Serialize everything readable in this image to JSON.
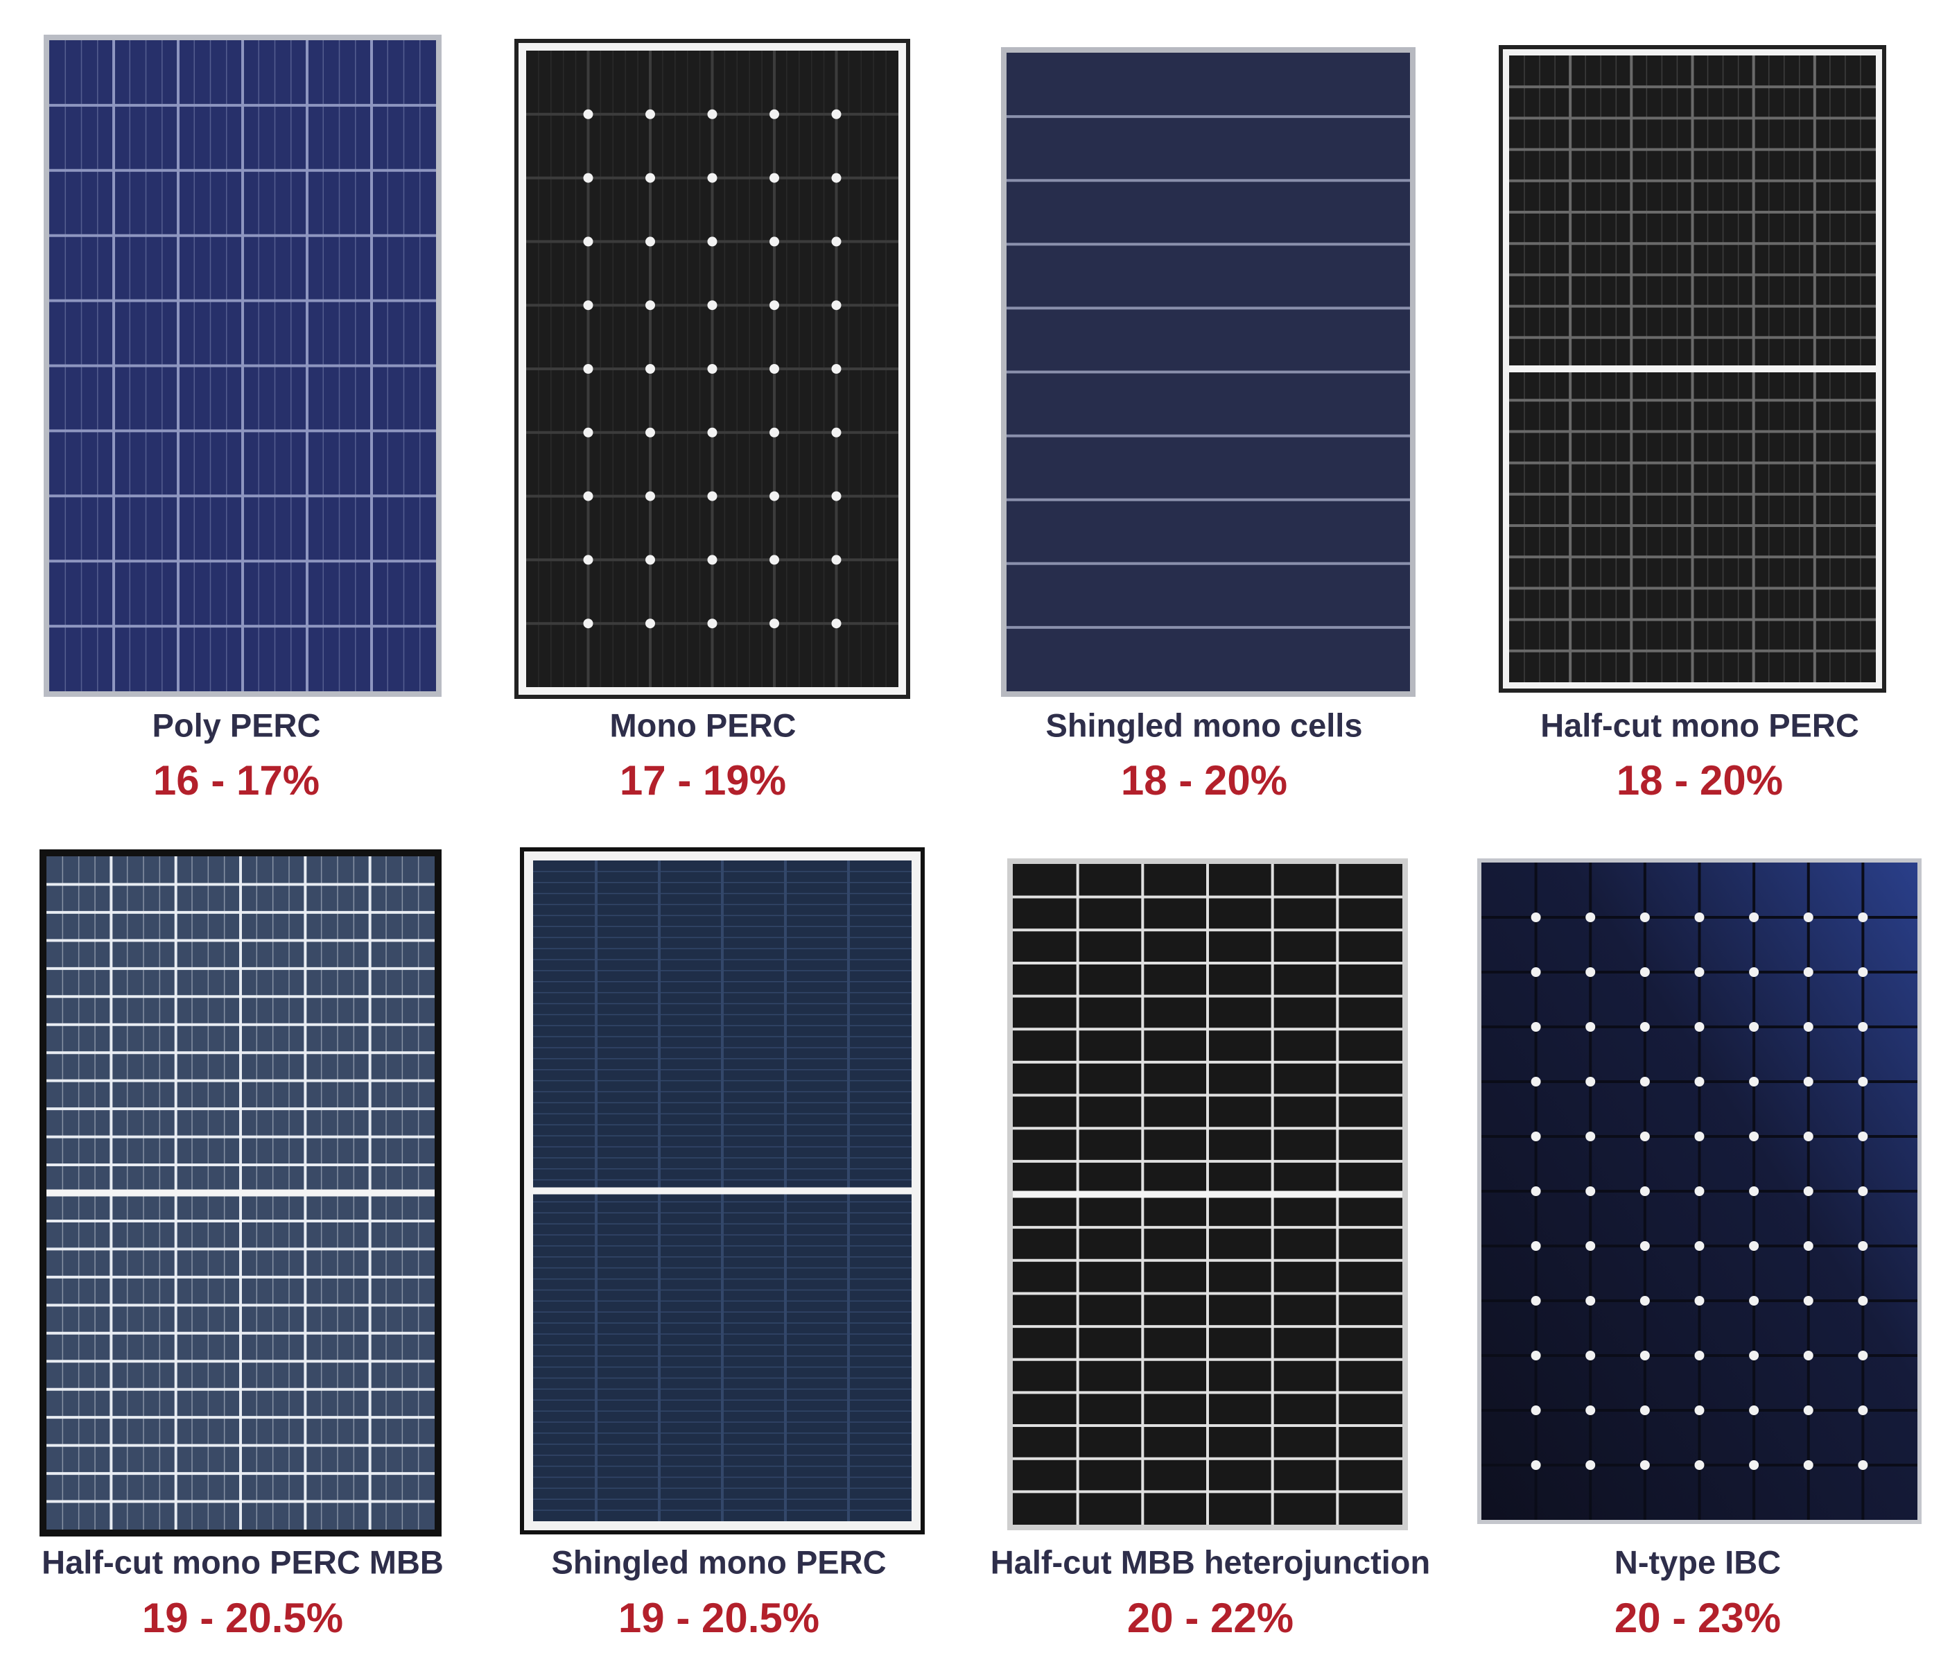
{
  "panels": [
    {
      "name": "Poly PERC",
      "efficiency": "16 - 17%"
    },
    {
      "name": "Mono PERC",
      "efficiency": "17 - 19%"
    },
    {
      "name": "Shingled  mono cells",
      "efficiency": "18 - 20%"
    },
    {
      "name": "Half-cut mono PERC",
      "efficiency": "18 - 20%"
    },
    {
      "name": "Half-cut mono PERC MBB",
      "efficiency": "19 - 20.5%"
    },
    {
      "name": "Shingled mono PERC",
      "efficiency": "19 - 20.5%"
    },
    {
      "name": "Half-cut MBB heterojunction",
      "efficiency": "20 - 22%"
    },
    {
      "name": "N-type IBC",
      "efficiency": "20 - 23%"
    }
  ]
}
